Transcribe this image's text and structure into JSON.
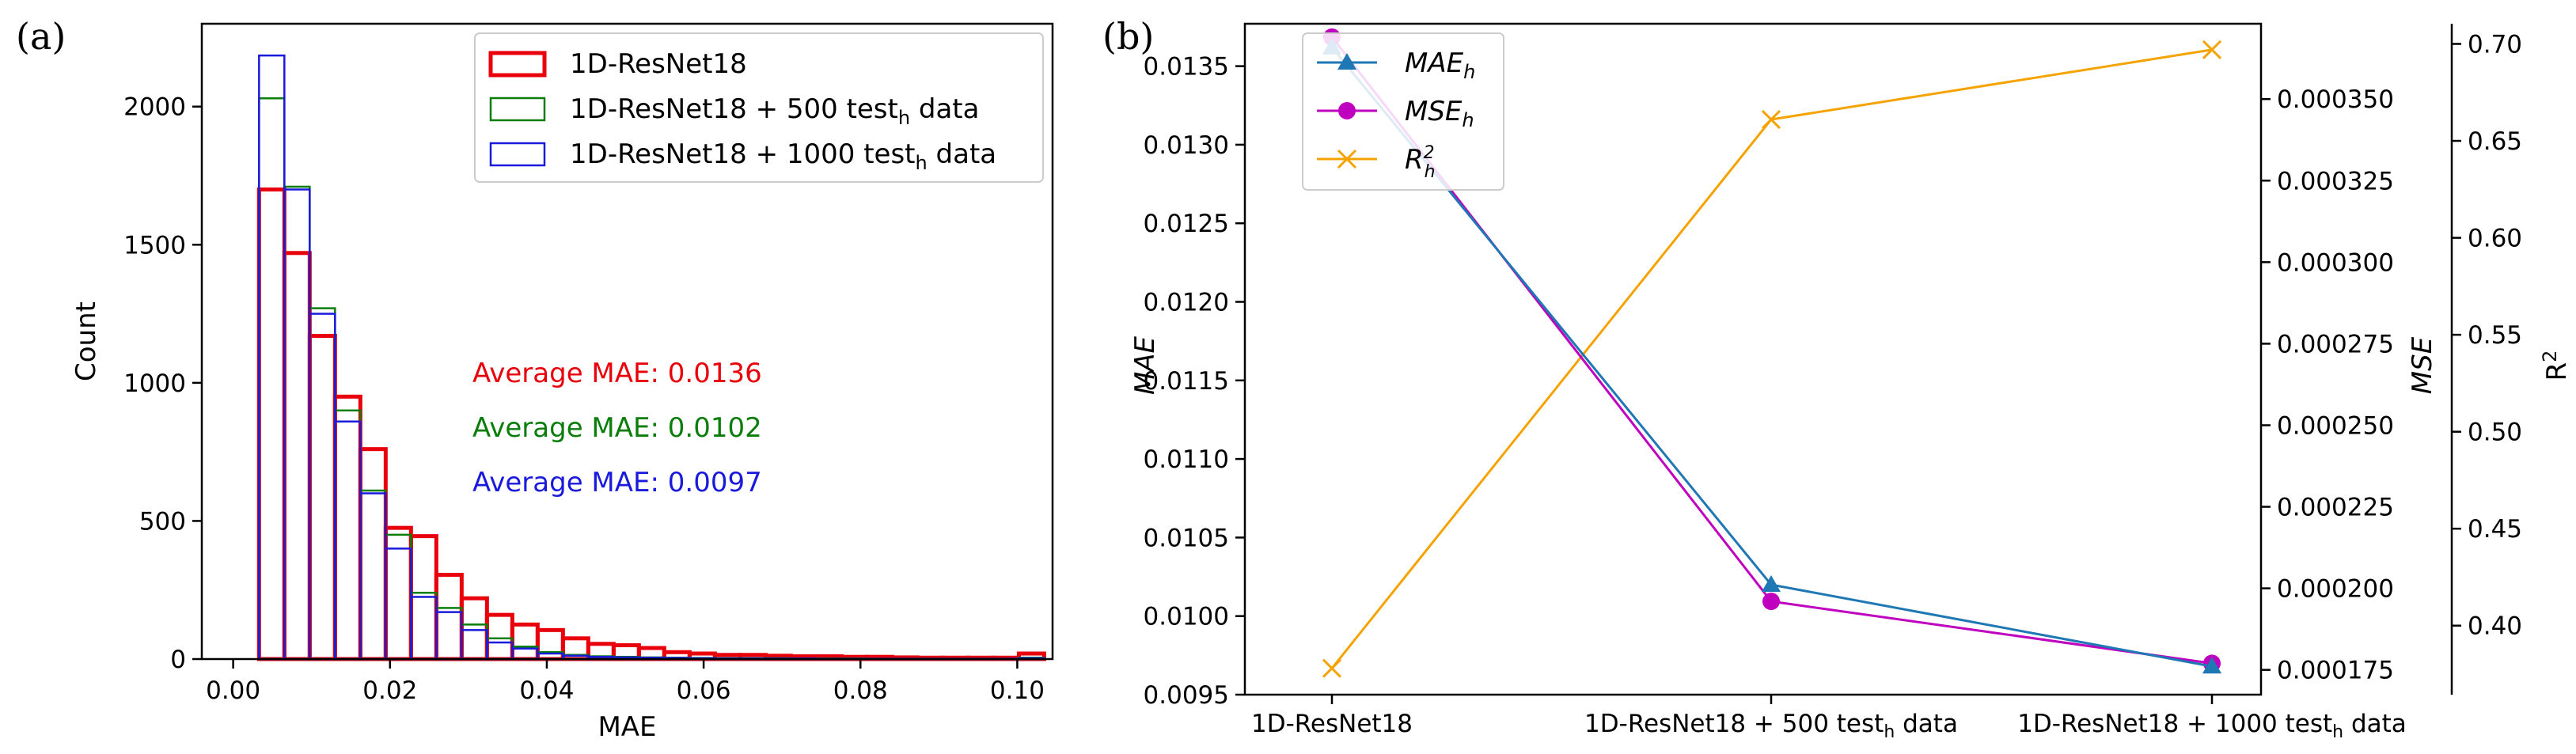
{
  "colors": {
    "red": "#e8000b",
    "green": "#0a7d0a",
    "blue": "#1a1adc",
    "mae_line": "#1f77b4",
    "mse_line": "#bf00bf",
    "r2_line": "#f5a300"
  },
  "chart_data": [
    {
      "panel": "(a)",
      "type": "bar",
      "subtype": "histogram",
      "xlabel": "MAE",
      "ylabel": "Count",
      "xlim": [
        -0.004,
        0.1045
      ],
      "ylim": [
        0,
        2300
      ],
      "xticks": [
        0.0,
        0.02,
        0.04,
        0.06,
        0.08,
        0.1
      ],
      "xtick_labels": [
        "0.00",
        "0.02",
        "0.04",
        "0.06",
        "0.08",
        "0.10"
      ],
      "yticks": [
        0,
        500,
        1000,
        1500,
        2000
      ],
      "ytick_labels": [
        "0",
        "500",
        "1000",
        "1500",
        "2000"
      ],
      "bin_start": 0.0033,
      "bin_width": 0.00323,
      "series": [
        {
          "name": "1D-ResNet18",
          "color_key": "red",
          "values": [
            1700,
            1470,
            1170,
            950,
            760,
            475,
            445,
            305,
            220,
            160,
            125,
            105,
            75,
            55,
            50,
            40,
            25,
            20,
            15,
            15,
            12,
            10,
            10,
            8,
            8,
            6,
            5,
            5,
            5,
            5,
            20
          ]
        },
        {
          "name": "1D-ResNet18 + 500 test_h data",
          "color_key": "green",
          "values": [
            2030,
            1710,
            1270,
            900,
            610,
            450,
            240,
            185,
            125,
            75,
            45,
            25,
            15,
            10,
            8,
            6,
            5,
            4,
            3,
            3,
            3,
            2,
            2,
            2,
            1,
            1,
            1,
            1,
            1,
            1,
            5
          ]
        },
        {
          "name": "1D-ResNet18 + 1000 test_h data",
          "color_key": "blue",
          "values": [
            2185,
            1700,
            1250,
            860,
            600,
            400,
            225,
            170,
            105,
            60,
            38,
            20,
            12,
            8,
            6,
            5,
            4,
            3,
            2,
            2,
            2,
            2,
            1,
            1,
            1,
            1,
            1,
            1,
            1,
            1,
            3
          ]
        }
      ],
      "legend_position": "top-right",
      "legend": [
        {
          "prefix": "1D-ResNet18",
          "sub": "",
          "suffix": "",
          "color_key": "red"
        },
        {
          "prefix": "1D-ResNet18 + 500 test",
          "sub": "h",
          "suffix": " data",
          "color_key": "green"
        },
        {
          "prefix": "1D-ResNet18 + 1000 test",
          "sub": "h",
          "suffix": " data",
          "color_key": "blue"
        }
      ],
      "annotations": [
        {
          "text": "Average MAE: 0.0136",
          "color_key": "red"
        },
        {
          "text": "Average MAE: 0.0102",
          "color_key": "green"
        },
        {
          "text": "Average MAE: 0.0097",
          "color_key": "blue"
        }
      ]
    },
    {
      "panel": "(b)",
      "type": "line",
      "categories": [
        "1D-ResNet18",
        "1D-ResNet18 + 500 test_h data",
        "1D-ResNet18 + 1000 test_h data"
      ],
      "category_labels": [
        {
          "prefix": "1D-ResNet18",
          "sub": "",
          "suffix": ""
        },
        {
          "prefix": "1D-ResNet18 + 500 test",
          "sub": "h",
          "suffix": " data"
        },
        {
          "prefix": "1D-ResNet18 + 1000 test",
          "sub": "h",
          "suffix": " data"
        }
      ],
      "axes": [
        {
          "id": "mae",
          "label": "MAE",
          "side": "left",
          "ylim": [
            0.0095,
            0.01377
          ],
          "ticks": [
            0.0095,
            0.01,
            0.0105,
            0.011,
            0.0115,
            0.012,
            0.0125,
            0.013,
            0.0135
          ],
          "tick_labels": [
            "0.0095",
            "0.0100",
            "0.0105",
            "0.0110",
            "0.0115",
            "0.0120",
            "0.0125",
            "0.0130",
            "0.0135"
          ]
        },
        {
          "id": "mse",
          "label": "MSE",
          "side": "right",
          "ylim": [
            0.0001674,
            0.0003731
          ],
          "ticks": [
            0.000175,
            0.0002,
            0.000225,
            0.00025,
            0.000275,
            0.0003,
            0.000325,
            0.00035
          ],
          "tick_labels": [
            "0.000175",
            "0.000200",
            "0.000225",
            "0.000250",
            "0.000275",
            "0.000300",
            "0.000325",
            "0.000350"
          ]
        },
        {
          "id": "r2",
          "label": "R",
          "label_sup": "2",
          "side": "right-outer",
          "ylim": [
            0.3644,
            0.7104
          ],
          "ticks": [
            0.4,
            0.45,
            0.5,
            0.55,
            0.6,
            0.65,
            0.7
          ],
          "tick_labels": [
            "0.40",
            "0.45",
            "0.50",
            "0.55",
            "0.60",
            "0.65",
            "0.70"
          ]
        }
      ],
      "series": [
        {
          "name": "MAE_h",
          "axis": "mae",
          "color_key": "mae_line",
          "marker": "triangle",
          "values": [
            0.01362,
            0.0102,
            0.00968
          ]
        },
        {
          "name": "MSE_h",
          "axis": "mse",
          "color_key": "mse_line",
          "marker": "circle",
          "values": [
            0.000369,
            0.000196,
            0.000177
          ]
        },
        {
          "name": "R_h^2",
          "axis": "r2",
          "color_key": "r2_line",
          "marker": "x",
          "values": [
            0.378,
            0.661,
            0.697
          ]
        }
      ],
      "legend_position": "top-left",
      "legend": [
        {
          "base": "MAE",
          "sub": "h",
          "sup": "",
          "color_key": "mae_line",
          "marker": "triangle"
        },
        {
          "base": "MSE",
          "sub": "h",
          "sup": "",
          "color_key": "mse_line",
          "marker": "circle"
        },
        {
          "base": "R",
          "sub": "h",
          "sup": "2",
          "color_key": "r2_line",
          "marker": "x"
        }
      ]
    }
  ]
}
